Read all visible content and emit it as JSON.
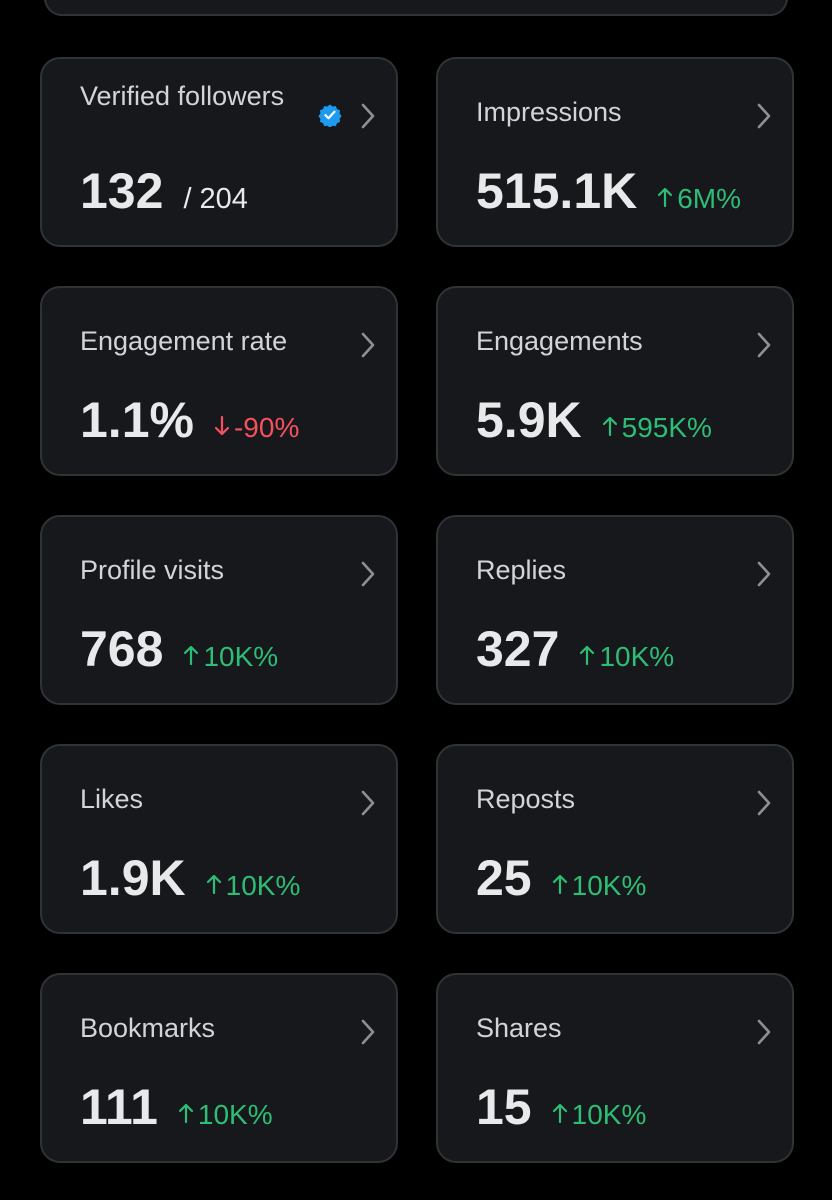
{
  "cards": [
    {
      "label": "Verified followers",
      "value": "132",
      "total": "/ 204",
      "verified": true
    },
    {
      "label": "Impressions",
      "value": "515.1K",
      "change": "6M%",
      "trend": "up"
    },
    {
      "label": "Engagement rate",
      "value": "1.1%",
      "change": "-90%",
      "trend": "down"
    },
    {
      "label": "Engagements",
      "value": "5.9K",
      "change": "595K%",
      "trend": "up"
    },
    {
      "label": "Profile visits",
      "value": "768",
      "change": "10K%",
      "trend": "up"
    },
    {
      "label": "Replies",
      "value": "327",
      "change": "10K%",
      "trend": "up"
    },
    {
      "label": "Likes",
      "value": "1.9K",
      "change": "10K%",
      "trend": "up"
    },
    {
      "label": "Reposts",
      "value": "25",
      "change": "10K%",
      "trend": "up"
    },
    {
      "label": "Bookmarks",
      "value": "111",
      "change": "10K%",
      "trend": "up"
    },
    {
      "label": "Shares",
      "value": "15",
      "change": "10K%",
      "trend": "up"
    }
  ]
}
